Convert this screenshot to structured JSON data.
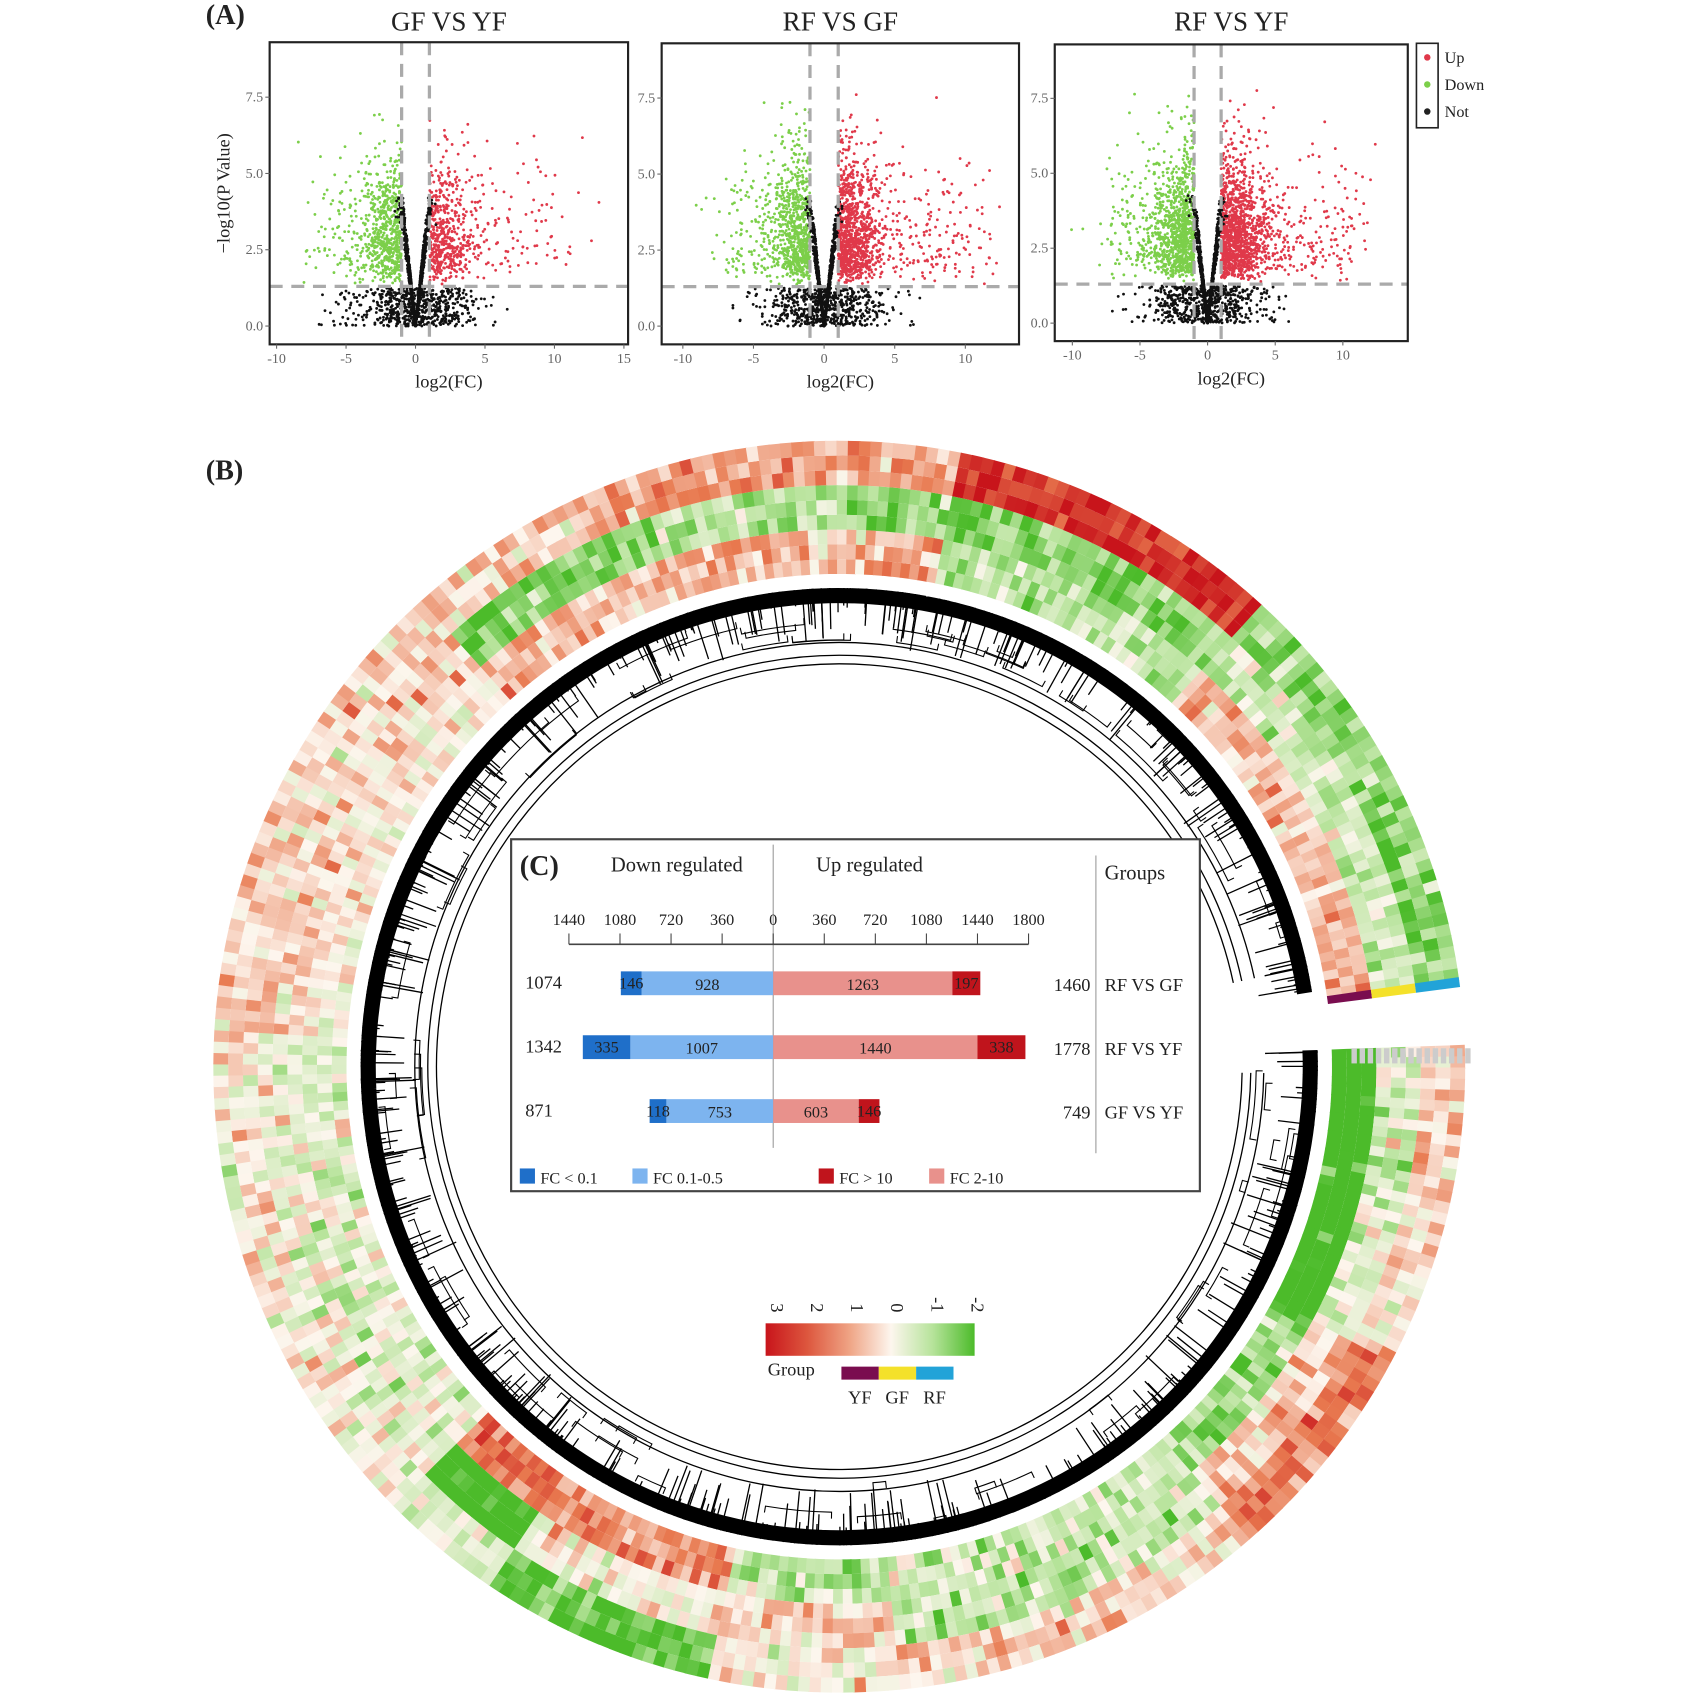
{
  "panel_labels": {
    "a": "(A)",
    "b": "(B)",
    "c": "(C)"
  },
  "chart_data": [
    {
      "type": "scatter",
      "id": "volcano-gf-vs-yf",
      "title": "GF VS YF",
      "xlabel": "log2(FC)",
      "ylabel": "−log10(P Value)",
      "xlim": [
        -10.5,
        15.3
      ],
      "ylim": [
        -0.6,
        9.3
      ],
      "xticks": [
        "-10",
        "-5",
        "0",
        "5",
        "10",
        "15"
      ],
      "xtick_values": [
        -10,
        -5,
        0,
        5,
        10,
        15
      ],
      "yticks": [
        "0.0",
        "2.5",
        "5.0",
        "7.5"
      ],
      "ytick_values": [
        0,
        2.5,
        5,
        7.5
      ],
      "fc_threshold": [
        -1,
        1
      ],
      "p_threshold": 1.3,
      "up_count": 749,
      "down_count": 871,
      "x_spread": 1.0
    },
    {
      "type": "scatter",
      "id": "volcano-rf-vs-gf",
      "title": "RF VS GF",
      "xlabel": "log2(FC)",
      "ylabel": "",
      "xlim": [
        -11.5,
        13.8
      ],
      "ylim": [
        -0.6,
        9.3
      ],
      "xticks": [
        "-10",
        "-5",
        "0",
        "5",
        "10"
      ],
      "xtick_values": [
        -10,
        -5,
        0,
        5,
        10
      ],
      "yticks": [
        "0.0",
        "2.5",
        "5.0",
        "7.5"
      ],
      "ytick_values": [
        0,
        2.5,
        5,
        7.5
      ],
      "fc_threshold": [
        -1,
        1
      ],
      "p_threshold": 1.3,
      "up_count": 1460,
      "down_count": 1074,
      "x_spread": 0.85
    },
    {
      "type": "scatter",
      "id": "volcano-rf-vs-yf",
      "title": "RF VS YF",
      "xlabel": "log2(FC)",
      "ylabel": "",
      "xlim": [
        -11.3,
        14.8
      ],
      "ylim": [
        -0.6,
        9.3
      ],
      "xticks": [
        "-10",
        "-5",
        "0",
        "5",
        "10"
      ],
      "xtick_values": [
        -10,
        -5,
        0,
        5,
        10
      ],
      "yticks": [
        "0.0",
        "2.5",
        "5.0",
        "7.5"
      ],
      "ytick_values": [
        0,
        2.5,
        5,
        7.5
      ],
      "fc_threshold": [
        -1,
        1
      ],
      "p_threshold": 1.3,
      "up_count": 1778,
      "down_count": 1342,
      "x_spread": 0.95
    },
    {
      "type": "heatmap",
      "id": "circular-heatmap",
      "layout": "circular with dendrogram",
      "colorbar_ticks": [
        "3",
        "2",
        "1",
        "0",
        "-1",
        "-2"
      ],
      "value_range": [
        -2,
        3
      ],
      "group_label": "Group",
      "groups": [
        {
          "name": "YF",
          "color": "#7a0d4f"
        },
        {
          "name": "GF",
          "color": "#f4e12a"
        },
        {
          "name": "RF",
          "color": "#22a3d8"
        }
      ]
    },
    {
      "type": "bar",
      "id": "deg-counts",
      "orientation": "horizontal diverging stacked",
      "header_down": "Down regulated",
      "header_up": "Up regulated",
      "header_groups": "Groups",
      "axis_ticks_left": [
        "1440",
        "1080",
        "720",
        "360"
      ],
      "axis_ticks_right": [
        "0",
        "360",
        "720",
        "1080",
        "1440",
        "1800"
      ],
      "axis_tick_values_left": [
        1440,
        1080,
        720,
        360
      ],
      "axis_tick_values_right": [
        0,
        360,
        720,
        1080,
        1440,
        1800
      ],
      "rows": [
        {
          "group": "RF VS GF",
          "down_total": "1074",
          "up_total": "1460",
          "down_lt01": 146,
          "down_lt01_label": "146",
          "down_01_05": 928,
          "down_01_05_label": "928",
          "up_2_10": 1263,
          "up_2_10_label": "1263",
          "up_gt10": 197,
          "up_gt10_label": "197"
        },
        {
          "group": "RF VS YF",
          "down_total": "1342",
          "up_total": "1778",
          "down_lt01": 335,
          "down_lt01_label": "335",
          "down_01_05": 1007,
          "down_01_05_label": "1007",
          "up_2_10": 1440,
          "up_2_10_label": "1440",
          "up_gt10": 338,
          "up_gt10_label": "338"
        },
        {
          "group": "GF VS YF",
          "down_total": "871",
          "up_total": "749",
          "down_lt01": 118,
          "down_lt01_label": "118",
          "down_01_05": 753,
          "down_01_05_label": "753",
          "up_2_10": 603,
          "up_2_10_label": "603",
          "up_gt10": 146,
          "up_gt10_label": "146"
        }
      ],
      "legend": [
        {
          "label": "FC < 0.1",
          "color": "#1f6fc9"
        },
        {
          "label": "FC  0.1-0.5",
          "color": "#7db4ef"
        },
        {
          "label": "FC > 10",
          "color": "#c0141c"
        },
        {
          "label": "FC  2-10",
          "color": "#e8918c"
        }
      ]
    }
  ],
  "volcano_legend": [
    {
      "label": "Up",
      "color": "#e0394a"
    },
    {
      "label": "Down",
      "color": "#7ccf4a"
    },
    {
      "label": "Not",
      "color": "#222222"
    }
  ]
}
